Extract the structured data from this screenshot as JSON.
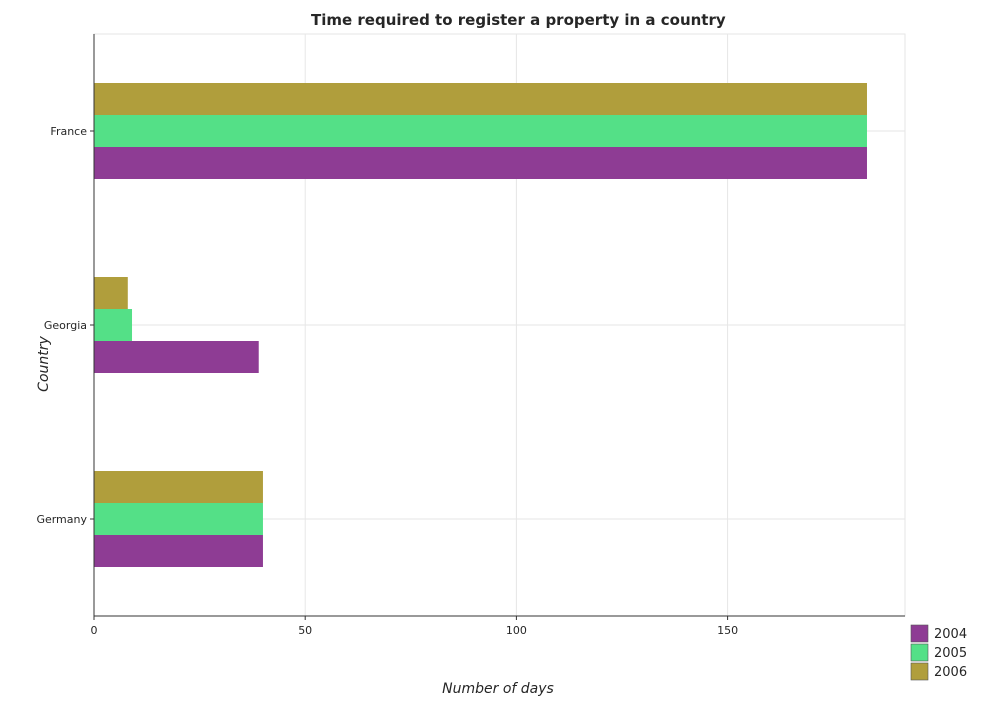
{
  "chart_data": {
    "type": "bar",
    "orientation": "horizontal",
    "title": "Time required to register a property in a country",
    "xlabel": "Number of days",
    "ylabel": "Country",
    "categories": [
      "France",
      "Georgia",
      "Germany"
    ],
    "series": [
      {
        "name": "2004",
        "color": "#8e3c94",
        "values": [
          183,
          39,
          40
        ]
      },
      {
        "name": "2005",
        "color": "#54e087",
        "values": [
          183,
          9,
          40
        ]
      },
      {
        "name": "2006",
        "color": "#b09e3c",
        "values": [
          183,
          8,
          40
        ]
      }
    ],
    "xlim": [
      0,
      192
    ],
    "xticks": [
      0,
      50,
      100,
      150
    ],
    "grid": true,
    "legend_position": "bottom-right"
  }
}
